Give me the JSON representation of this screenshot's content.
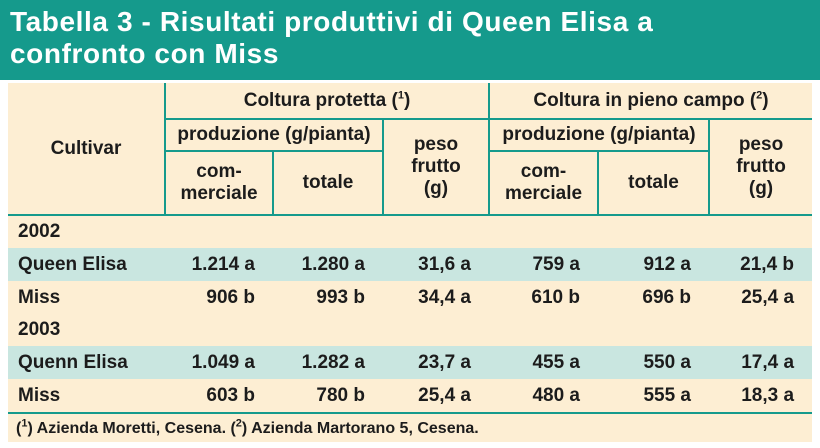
{
  "title": {
    "line1": "Tabella 3 - Risultati produttivi di Queen Elisa a",
    "line2": "confronto con Miss"
  },
  "header": {
    "cultivar": "Cultivar",
    "group1": {
      "label": "Coltura protetta (",
      "note": "1",
      "close": ")"
    },
    "group2": {
      "label": "Coltura in pieno campo (",
      "note": "2",
      "close": ")"
    },
    "production": "produzione (g/pianta)",
    "weight": [
      "peso",
      "frutto",
      "(g)"
    ],
    "commercial": [
      "com-",
      "merciale"
    ],
    "total": "totale"
  },
  "sections": [
    {
      "year": "2002",
      "rows": [
        {
          "cultivar": "Queen Elisa",
          "values": [
            "1.214 a",
            "1.280 a",
            "31,6 a",
            "759 a",
            "912 a",
            "21,4 b"
          ]
        },
        {
          "cultivar": "Miss",
          "values": [
            "906 b",
            "993 b",
            "34,4 a",
            "610 b",
            "696 b",
            "25,4 a"
          ]
        }
      ]
    },
    {
      "year": "2003",
      "rows": [
        {
          "cultivar": "Quenn Elisa",
          "values": [
            "1.049 a",
            "1.282 a",
            "23,7 a",
            "455 a",
            "550 a",
            "17,4 a"
          ]
        },
        {
          "cultivar": "Miss",
          "values": [
            "603 b",
            "780 b",
            "25,4 a",
            "480 a",
            "555 a",
            "18,3 a"
          ]
        }
      ]
    }
  ],
  "notes": [
    {
      "open": "(",
      "num": "1",
      "text": ") Azienda Moretti, Cesena. ("
    },
    {
      "num": "2",
      "text": ") Azienda Martorano 5, Cesena."
    }
  ],
  "colors": {
    "title_bg": "#159a8c",
    "panel_bg": "#fdeed3",
    "row_shade": "#c9e6e0",
    "rules": "#159a8c"
  }
}
